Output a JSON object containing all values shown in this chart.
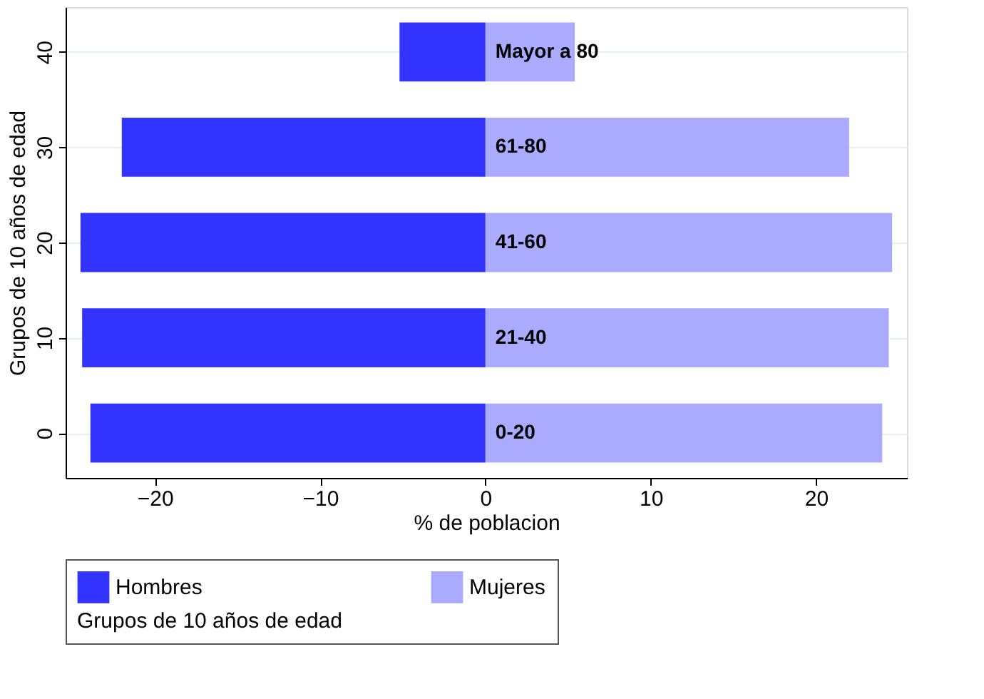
{
  "chart_data": {
    "type": "bar",
    "orientation": "horizontal",
    "xlabel": "% de poblacion",
    "ylabel": "Grupos de 10 años de edad",
    "legend_title": "Grupos de 10 años de edad",
    "x": [
      0,
      10,
      20,
      30,
      40
    ],
    "series": [
      {
        "name": "Hombres",
        "color": "#3333ff",
        "values": [
          -23.9,
          -24.4,
          -24.5,
          -22.0,
          -5.2
        ]
      },
      {
        "name": "Mujeres",
        "color": "#aaaaff",
        "values": [
          24.0,
          24.4,
          24.6,
          22.0,
          5.4
        ]
      }
    ],
    "annotations": [
      "0-20",
      "21-40",
      "41-60",
      "61-80",
      "Mayor a 80"
    ],
    "stacked": true,
    "xlim": [
      -25.4,
      25.5
    ],
    "xticks": [
      -20,
      -10,
      0,
      10,
      20
    ],
    "ylim": [
      -4.7,
      44.7
    ],
    "yticks": [
      0,
      10,
      20,
      30,
      40
    ],
    "grid": "y",
    "legend": "bottom"
  }
}
